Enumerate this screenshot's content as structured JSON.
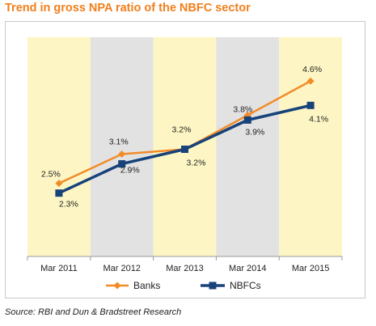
{
  "title": "Trend in gross NPA ratio of the NBFC sector",
  "source": "Source: RBI and Dun & Bradstreet Research",
  "chart_data": {
    "type": "line",
    "title": "Trend in gross NPA ratio of the NBFC sector",
    "categories": [
      "Mar 2011",
      "Mar 2012",
      "Mar 2013",
      "Mar 2014",
      "Mar 2015"
    ],
    "series": [
      {
        "name": "Banks",
        "values": [
          2.5,
          3.1,
          3.2,
          3.9,
          4.6
        ],
        "labels": [
          "2.5%",
          "3.1%",
          "3.2%",
          "3.9%",
          "4.6%"
        ],
        "color": "#f28c28",
        "marker": "diamond"
      },
      {
        "name": "NBFCs",
        "values": [
          2.3,
          2.9,
          3.2,
          3.8,
          4.1
        ],
        "labels": [
          "2.3%",
          "2.9%",
          "3.2%",
          "3.8%",
          "4.1%"
        ],
        "color": "#17427a",
        "marker": "square"
      }
    ],
    "ylim": [
      1.0,
      5.5
    ],
    "band_colors": [
      "#fdf6c4",
      "#e2e2e2"
    ],
    "legend": "bottom",
    "grid": false
  }
}
